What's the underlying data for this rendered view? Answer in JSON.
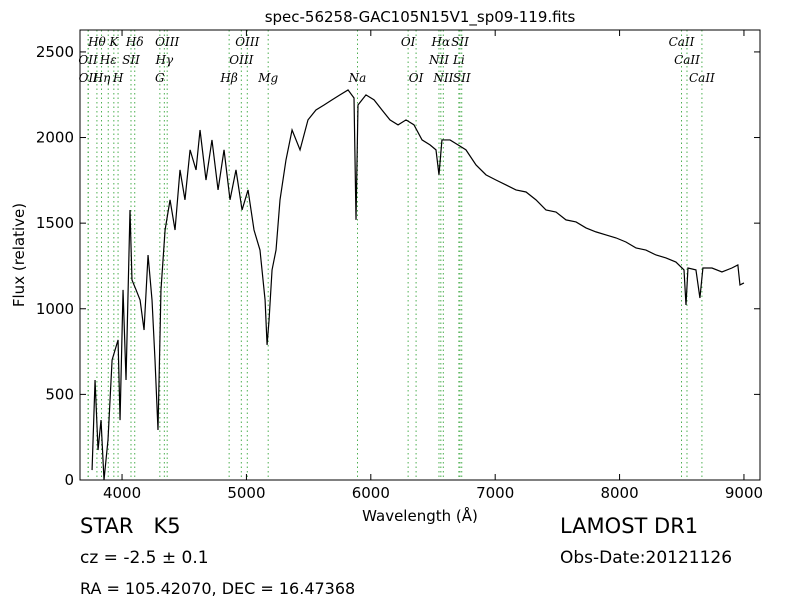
{
  "chart_data": {
    "type": "line",
    "title": "spec-56258-GAC105N15V1_sp09-119.fits",
    "x_label": "Wavelength (Å)",
    "y_label": "Flux (relative)",
    "color": "#000000",
    "line_color": "#4caf50",
    "grid": false,
    "xlim": [
      3662,
      9129
    ],
    "ylim": [
      0,
      2628
    ],
    "xticks": [
      4000,
      5000,
      6000,
      7000,
      8000,
      9000
    ],
    "yticks": [
      0,
      500,
      1000,
      1500,
      2000,
      2500
    ],
    "x": [
      3759,
      3783,
      3807,
      3831,
      3855,
      3887,
      3920,
      3968,
      3984,
      4008,
      4032,
      4064,
      4080,
      4113,
      4145,
      4177,
      4209,
      4241,
      4265,
      4289,
      4313,
      4346,
      4386,
      4426,
      4466,
      4506,
      4547,
      4595,
      4627,
      4675,
      4723,
      4772,
      4820,
      4868,
      4916,
      4965,
      5013,
      5061,
      5109,
      5150,
      5166,
      5182,
      5206,
      5238,
      5270,
      5318,
      5367,
      5431,
      5495,
      5559,
      5624,
      5688,
      5752,
      5817,
      5865,
      5881,
      5897,
      5961,
      6026,
      6090,
      6154,
      6219,
      6283,
      6347,
      6412,
      6476,
      6524,
      6548,
      6572,
      6637,
      6701,
      6765,
      6846,
      6926,
      7006,
      7087,
      7167,
      7248,
      7328,
      7408,
      7489,
      7569,
      7650,
      7730,
      7810,
      7891,
      7971,
      8051,
      8132,
      8212,
      8293,
      8373,
      8453,
      8518,
      8534,
      8550,
      8614,
      8646,
      8670,
      8743,
      8823,
      8903,
      8951,
      8968,
      9000
    ],
    "values": [
      58,
      584,
      175,
      350,
      0,
      234,
      701,
      818,
      350,
      1110,
      584,
      1577,
      1168,
      1110,
      1051,
      876,
      1314,
      1051,
      701,
      292,
      1110,
      1460,
      1636,
      1460,
      1811,
      1636,
      1928,
      1811,
      2044,
      1752,
      1986,
      1694,
      1928,
      1636,
      1811,
      1577,
      1694,
      1460,
      1343,
      1051,
      789,
      935,
      1227,
      1343,
      1636,
      1869,
      2044,
      1928,
      2103,
      2161,
      2190,
      2220,
      2249,
      2278,
      2231,
      1519,
      2190,
      2249,
      2220,
      2161,
      2103,
      2074,
      2103,
      2074,
      1986,
      1957,
      1928,
      1782,
      1986,
      1986,
      1957,
      1928,
      1840,
      1782,
      1752,
      1723,
      1694,
      1682,
      1636,
      1577,
      1565,
      1519,
      1507,
      1472,
      1449,
      1431,
      1414,
      1390,
      1355,
      1343,
      1314,
      1297,
      1273,
      1227,
      1022,
      1238,
      1227,
      1063,
      1238,
      1238,
      1215,
      1238,
      1256,
      1139,
      1151
    ],
    "line_labels": [
      [
        {
          "x": 3798,
          "label": "Hθ"
        },
        {
          "x": 3934,
          "label": "K"
        },
        {
          "x": 4102,
          "label": "Hδ"
        },
        {
          "x": 4363,
          "label": "OIII"
        },
        {
          "x": 5007,
          "label": "OIII"
        },
        {
          "x": 6300,
          "label": "OI"
        },
        {
          "x": 6563,
          "label": "Hα"
        },
        {
          "x": 6717,
          "label": "SII"
        },
        {
          "x": 8498,
          "label": "CaII"
        }
      ],
      [
        {
          "x": 3727,
          "label": "OII"
        },
        {
          "x": 3889,
          "label": "Hε"
        },
        {
          "x": 4072,
          "label": "SII"
        },
        {
          "x": 4340,
          "label": "Hγ"
        },
        {
          "x": 4959,
          "label": "OIII"
        },
        {
          "x": 6548,
          "label": "NII"
        },
        {
          "x": 6708,
          "label": "Li"
        },
        {
          "x": 8542,
          "label": "CaII"
        }
      ],
      [
        {
          "x": 3729,
          "label": "OII"
        },
        {
          "x": 3835,
          "label": "Hη"
        },
        {
          "x": 3968,
          "label": "H"
        },
        {
          "x": 4304,
          "label": "G"
        },
        {
          "x": 4861,
          "label": "Hβ"
        },
        {
          "x": 5175,
          "label": "Mg"
        },
        {
          "x": 5893,
          "label": "Na"
        },
        {
          "x": 6364,
          "label": "OI"
        },
        {
          "x": 6583,
          "label": "NII"
        },
        {
          "x": 6731,
          "label": "SII"
        },
        {
          "x": 8662,
          "label": "CaII"
        }
      ]
    ]
  },
  "info": {
    "object": "STAR   K5",
    "cz": "cz = -2.5 ± 0.1",
    "coords": "RA = 105.42070, DEC = 16.47368",
    "survey": "LAMOST DR1",
    "obs_date": "Obs-Date:20121126"
  }
}
